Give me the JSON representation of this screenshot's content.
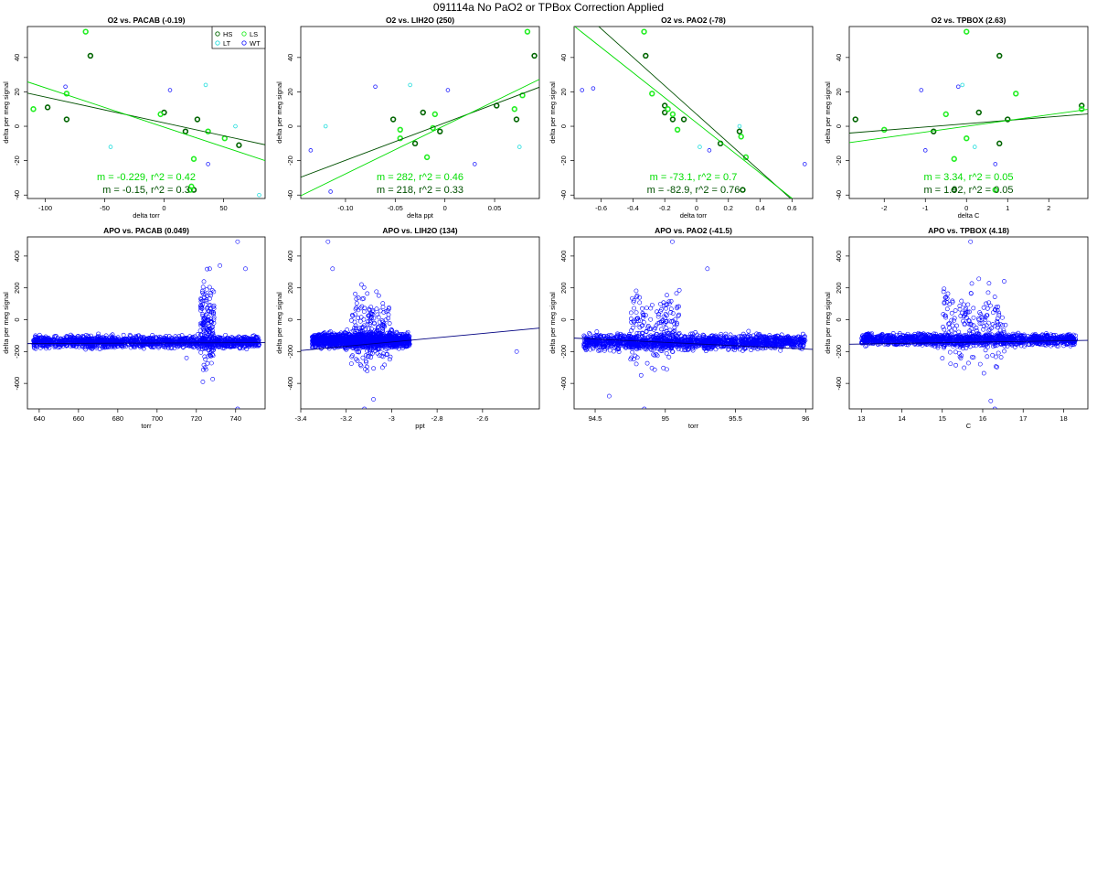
{
  "page": {
    "title": "091114a   No PaO2 or TPBox Correction Applied"
  },
  "colors": {
    "HS": "#006400",
    "LS": "#22ee22",
    "LT": "#22dddd",
    "WT": "#2222ff",
    "apo_points": "#0000ff",
    "fit_dark": "#005000",
    "fit_light": "#00dd00",
    "fit_apo": "#000080"
  },
  "legend": {
    "entries": [
      {
        "label": "HS",
        "group": "HS"
      },
      {
        "label": "LS",
        "group": "LS"
      },
      {
        "label": "LT",
        "group": "LT"
      },
      {
        "label": "WT",
        "group": "WT"
      }
    ]
  },
  "chart_data": [
    {
      "type": "scatter",
      "title": "O2 vs. PACAB (-0.19)",
      "xlabel": "delta torr",
      "ylabel": "delta per meg signal",
      "xlim": [
        -115,
        85
      ],
      "ylim": [
        -42,
        58
      ],
      "xticks": [
        -100,
        -50,
        0,
        50
      ],
      "yticks": [
        -40,
        -20,
        0,
        20,
        40
      ],
      "legend_position": "top-right",
      "fit_text": [
        {
          "text": "m = -0.229, r^2 = 0.42",
          "tone": "light"
        },
        {
          "text": "m = -0.15, r^2 = 0.3",
          "tone": "dark"
        }
      ],
      "fits": [
        {
          "tone": "dark",
          "slope": -0.15,
          "intercept": 2
        },
        {
          "tone": "light",
          "slope": -0.229,
          "intercept": -0.5
        }
      ],
      "series": [
        {
          "group": "HS",
          "x": [
            -98,
            -82,
            -62,
            0,
            18,
            28,
            63,
            25
          ],
          "y": [
            11,
            4,
            41,
            8,
            -3,
            4,
            -11,
            -37
          ]
        },
        {
          "group": "LS",
          "x": [
            -110,
            -82,
            -66,
            -3,
            25,
            37,
            51,
            23,
            22
          ],
          "y": [
            10,
            19,
            55,
            7,
            -19,
            -3,
            -7,
            -35,
            -37
          ]
        },
        {
          "group": "LT",
          "x": [
            -45,
            35,
            60,
            80
          ],
          "y": [
            -12,
            24,
            0,
            -40
          ]
        },
        {
          "group": "WT",
          "x": [
            -83,
            5,
            37
          ],
          "y": [
            23,
            21,
            -22
          ]
        }
      ]
    },
    {
      "type": "scatter",
      "title": "O2 vs. LIH2O (250)",
      "xlabel": "delta ppt",
      "ylabel": "delta per meg signal",
      "xlim": [
        -0.145,
        0.095
      ],
      "ylim": [
        -42,
        58
      ],
      "xticks": [
        -0.1,
        -0.05,
        0.0,
        0.05
      ],
      "yticks": [
        -40,
        -20,
        0,
        20,
        40
      ],
      "fit_text": [
        {
          "text": "m = 282, r^2 = 0.46",
          "tone": "light"
        },
        {
          "text": "m = 218, r^2 = 0.33",
          "tone": "dark"
        }
      ],
      "fits": [
        {
          "tone": "dark",
          "slope": 218,
          "intercept": 2
        },
        {
          "tone": "light",
          "slope": 282,
          "intercept": 0.5
        }
      ],
      "series": [
        {
          "group": "HS",
          "x": [
            -0.052,
            -0.022,
            -0.03,
            -0.005,
            0.052,
            0.072,
            0.09
          ],
          "y": [
            4,
            8,
            -10,
            -3,
            12,
            4,
            41
          ]
        },
        {
          "group": "LS",
          "x": [
            -0.045,
            -0.045,
            -0.01,
            -0.012,
            0.07,
            0.078,
            0.083,
            -0.018
          ],
          "y": [
            -2,
            -7,
            7,
            -1,
            10,
            18,
            55,
            -18
          ]
        },
        {
          "group": "LT",
          "x": [
            -0.12,
            -0.035,
            0.075
          ],
          "y": [
            0,
            24,
            -12
          ]
        },
        {
          "group": "WT",
          "x": [
            -0.07,
            0.003,
            0.03,
            -0.115,
            -0.135
          ],
          "y": [
            23,
            21,
            -22,
            -38,
            -14
          ]
        }
      ]
    },
    {
      "type": "scatter",
      "title": "O2 vs. PAO2 (-78)",
      "xlabel": "delta torr",
      "ylabel": "delta per meg signal",
      "xlim": [
        -0.77,
        0.73
      ],
      "ylim": [
        -42,
        58
      ],
      "xticks": [
        -0.6,
        -0.4,
        -0.2,
        0.0,
        0.2,
        0.4,
        0.6
      ],
      "yticks": [
        -40,
        -20,
        0,
        20,
        40
      ],
      "fit_text": [
        {
          "text": "m = -73.1, r^2 = 0.7",
          "tone": "light"
        },
        {
          "text": "m = -82.9, r^2 = 0.76",
          "tone": "dark"
        }
      ],
      "fits": [
        {
          "tone": "dark",
          "slope": -82.9,
          "intercept": 7
        },
        {
          "tone": "light",
          "slope": -73.1,
          "intercept": 2
        }
      ],
      "series": [
        {
          "group": "HS",
          "x": [
            -0.32,
            -0.2,
            -0.2,
            -0.15,
            -0.08,
            0.15,
            0.27,
            0.29
          ],
          "y": [
            41,
            12,
            8,
            4,
            4,
            -10,
            -3,
            -37
          ]
        },
        {
          "group": "LS",
          "x": [
            -0.33,
            -0.28,
            -0.18,
            -0.15,
            -0.12,
            0.28,
            0.31
          ],
          "y": [
            55,
            19,
            10,
            7,
            -2,
            -6,
            -18
          ]
        },
        {
          "group": "LT",
          "x": [
            0.02,
            0.27
          ],
          "y": [
            -12,
            0
          ]
        },
        {
          "group": "WT",
          "x": [
            -0.72,
            -0.65,
            0.08,
            0.68
          ],
          "y": [
            21,
            22,
            -14,
            -22
          ]
        }
      ]
    },
    {
      "type": "scatter",
      "title": "O2 vs. TPBOX (2.63)",
      "xlabel": "delta C",
      "ylabel": "delta per meg signal",
      "xlim": [
        -2.85,
        2.95
      ],
      "ylim": [
        -42,
        58
      ],
      "xticks": [
        -2,
        -1,
        0,
        1,
        2
      ],
      "yticks": [
        -40,
        -20,
        0,
        20,
        40
      ],
      "fit_text": [
        {
          "text": "m = 3.34, r^2 = 0.05",
          "tone": "light"
        },
        {
          "text": "m = 1.92, r^2 = 0.05",
          "tone": "dark"
        }
      ],
      "fits": [
        {
          "tone": "dark",
          "slope": 1.92,
          "intercept": 1.5
        },
        {
          "tone": "light",
          "slope": 3.34,
          "intercept": 0
        }
      ],
      "series": [
        {
          "group": "HS",
          "x": [
            -2.7,
            -0.8,
            0.3,
            0.8,
            1.0,
            0.8,
            2.8,
            -0.3
          ],
          "y": [
            4,
            -3,
            8,
            41,
            4,
            -10,
            12,
            -37
          ]
        },
        {
          "group": "LS",
          "x": [
            -2.0,
            -0.5,
            0.0,
            0.0,
            1.2,
            0.7,
            2.8,
            -0.3
          ],
          "y": [
            -2,
            7,
            -7,
            55,
            19,
            -37,
            10,
            -19
          ]
        },
        {
          "group": "LT",
          "x": [
            -0.1,
            0.2
          ],
          "y": [
            24,
            -12
          ]
        },
        {
          "group": "WT",
          "x": [
            -1.1,
            -1.0,
            -0.2,
            0.7
          ],
          "y": [
            21,
            -14,
            23,
            -22
          ]
        }
      ]
    },
    {
      "type": "scatter",
      "title": "APO vs. PACAB (0.049)",
      "xlabel": "torr",
      "ylabel": "delta per meg signal",
      "xlim": [
        634,
        755
      ],
      "ylim": [
        -560,
        520
      ],
      "xticks": [
        640,
        660,
        680,
        700,
        720,
        740
      ],
      "yticks": [
        -400,
        -200,
        0,
        200,
        400
      ],
      "fits": [
        {
          "tone": "apo",
          "slope": 0.049,
          "intercept": -181
        }
      ],
      "series": [
        {
          "group": "APO",
          "description_shape": "dense band"
        }
      ],
      "cloud": [
        {
          "x": [
            637,
            752
          ],
          "y": [
            -195,
            -85
          ],
          "n": 1500
        },
        {
          "x": [
            722,
            729
          ],
          "y": [
            -460,
            360
          ],
          "n": 160
        }
      ],
      "outliers": [
        [
          741,
          490
        ],
        [
          741,
          -560
        ],
        [
          745,
          320
        ],
        [
          715,
          -240
        ],
        [
          732,
          340
        ],
        [
          748,
          -120
        ]
      ]
    },
    {
      "type": "scatter",
      "title": "APO vs. LIH2O (134)",
      "xlabel": "ppt",
      "ylabel": "delta per meg signal",
      "xlim": [
        -3.4,
        -2.35
      ],
      "ylim": [
        -560,
        520
      ],
      "xticks": [
        -3.4,
        -3.2,
        -3.0,
        -2.8,
        -2.6
      ],
      "yticks": [
        -400,
        -200,
        0,
        200,
        400
      ],
      "fits": [
        {
          "tone": "apo",
          "slope": 134,
          "intercept": 262
        }
      ],
      "cloud": [
        {
          "x": [
            -3.35,
            -2.92
          ],
          "y": [
            -200,
            -60
          ],
          "n": 1400
        },
        {
          "x": [
            -3.18,
            -3.0
          ],
          "y": [
            -440,
            300
          ],
          "n": 200
        }
      ],
      "outliers": [
        [
          -3.28,
          490
        ],
        [
          -3.12,
          -560
        ],
        [
          -2.45,
          -200
        ],
        [
          -3.26,
          320
        ],
        [
          -3.08,
          -500
        ]
      ]
    },
    {
      "type": "scatter",
      "title": "APO vs. PAO2 (-41.5)",
      "xlabel": "torr",
      "ylabel": "delta per meg signal",
      "xlim": [
        94.35,
        96.05
      ],
      "ylim": [
        -560,
        520
      ],
      "xticks": [
        94.5,
        95.0,
        95.5,
        96.0
      ],
      "yticks": [
        -400,
        -200,
        0,
        200,
        400
      ],
      "fits": [
        {
          "tone": "apo",
          "slope": -41.5,
          "intercept": 3800
        }
      ],
      "cloud": [
        {
          "x": [
            94.42,
            96.0
          ],
          "y": [
            -210,
            -70
          ],
          "n": 1500
        },
        {
          "x": [
            94.75,
            95.1
          ],
          "y": [
            -420,
            300
          ],
          "n": 180
        }
      ],
      "outliers": [
        [
          95.05,
          490
        ],
        [
          94.85,
          -560
        ],
        [
          95.3,
          320
        ],
        [
          94.6,
          -480
        ]
      ]
    },
    {
      "type": "scatter",
      "title": "APO vs. TPBOX (4.18)",
      "xlabel": "C",
      "ylabel": "delta per meg signal",
      "xlim": [
        12.7,
        18.6
      ],
      "ylim": [
        -560,
        520
      ],
      "xticks": [
        13,
        14,
        15,
        16,
        17,
        18
      ],
      "yticks": [
        -400,
        -200,
        0,
        200,
        400
      ],
      "fits": [
        {
          "tone": "apo",
          "slope": 4.18,
          "intercept": -207
        }
      ],
      "cloud": [
        {
          "x": [
            13.0,
            18.3
          ],
          "y": [
            -180,
            -70
          ],
          "n": 1400
        },
        {
          "x": [
            15.0,
            16.6
          ],
          "y": [
            -450,
            360
          ],
          "n": 200
        }
      ],
      "outliers": [
        [
          15.7,
          490
        ],
        [
          16.3,
          -560
        ],
        [
          16.2,
          -510
        ],
        [
          17.8,
          -130
        ]
      ]
    }
  ]
}
